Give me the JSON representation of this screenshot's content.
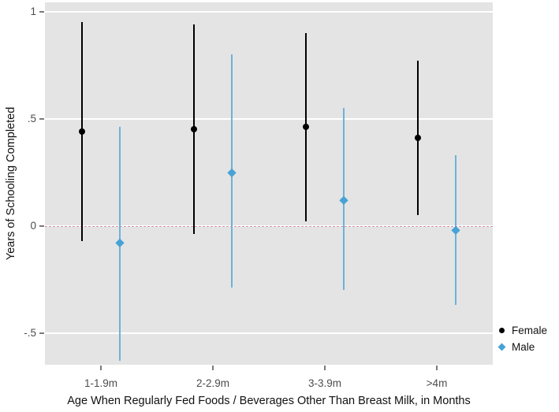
{
  "chart_data": {
    "type": "scatter",
    "subtype": "point-estimates-with-confidence-intervals",
    "title": "",
    "xlabel": "Age When Regularly Fed Foods / Beverages Other Than Breast Milk, in Months",
    "ylabel": "Years of Schooling Completed",
    "categories": [
      "1-1.9m",
      "2-2.9m",
      "3-3.9m",
      ">4m"
    ],
    "yticks": [
      {
        "label": "1",
        "value": 1.0
      },
      {
        "label": ".5",
        "value": 0.5
      },
      {
        "label": "0",
        "value": 0.0
      },
      {
        "label": "-.5",
        "value": -0.5
      }
    ],
    "ylim": [
      -0.65,
      1.04
    ],
    "grid": true,
    "plot_background": "#e4e4e4",
    "gridline_color": "#ffffff",
    "zero_line": {
      "value": 0,
      "style": "dashed",
      "color": "#d78fae"
    },
    "legend_position": "right",
    "series": [
      {
        "name": "Female",
        "marker": "circle",
        "marker_color": "#000000",
        "line_color": "#000000",
        "estimates": [
          0.44,
          0.45,
          0.46,
          0.41
        ],
        "ci_low": [
          -0.07,
          -0.04,
          0.02,
          0.05
        ],
        "ci_high": [
          0.95,
          0.94,
          0.9,
          0.77
        ]
      },
      {
        "name": "Male",
        "marker": "diamond",
        "marker_color": "#47a2d6",
        "line_color": "#6fb1da",
        "estimates": [
          -0.08,
          0.25,
          0.12,
          -0.02
        ],
        "ci_low": [
          -0.63,
          -0.29,
          -0.3,
          -0.37
        ],
        "ci_high": [
          0.46,
          0.8,
          0.55,
          0.33
        ]
      }
    ]
  }
}
